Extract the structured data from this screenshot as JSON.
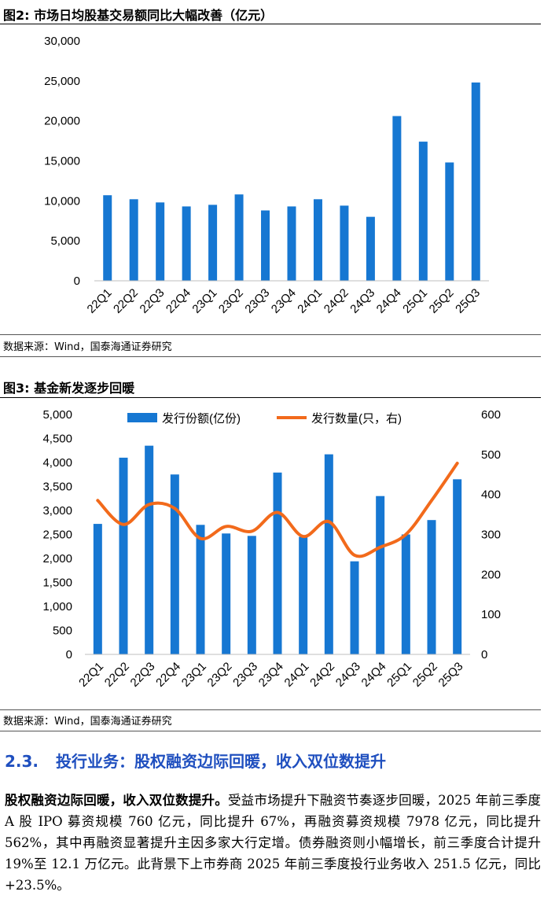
{
  "figure2": {
    "title": "图2:  市场日均股基交易额同比大幅改善（亿元）",
    "source": "数据来源：Wind，国泰海通证券研究",
    "chart_data": {
      "type": "bar",
      "categories": [
        "22Q1",
        "22Q2",
        "22Q3",
        "22Q4",
        "23Q1",
        "23Q2",
        "23Q3",
        "23Q4",
        "24Q1",
        "24Q2",
        "24Q3",
        "24Q4",
        "25Q1",
        "25Q2",
        "25Q3"
      ],
      "values": [
        10700,
        10200,
        9800,
        9300,
        9500,
        10800,
        8800,
        9300,
        10200,
        9400,
        8000,
        20600,
        17400,
        14800,
        24800
      ],
      "ylim": [
        0,
        30000
      ],
      "yticks": [
        "0",
        "5,000",
        "10,000",
        "15,000",
        "20,000",
        "25,000",
        "30,000"
      ],
      "color": "#1677d2",
      "grid": false
    }
  },
  "figure3": {
    "title": "图3:  基金新发逐步回暖",
    "source": "数据来源：Wind，国泰海通证券研究",
    "chart_data": {
      "type": "bar+line",
      "categories": [
        "22Q1",
        "22Q2",
        "22Q3",
        "22Q4",
        "23Q1",
        "23Q2",
        "23Q3",
        "23Q4",
        "24Q1",
        "24Q2",
        "24Q3",
        "24Q4",
        "25Q1",
        "25Q2",
        "25Q3"
      ],
      "series": [
        {
          "name": "发行份额(亿份)",
          "type": "bar",
          "axis": "left",
          "color": "#1677d2",
          "values": [
            2720,
            4100,
            4350,
            3750,
            2700,
            2520,
            2470,
            3790,
            2450,
            4170,
            1940,
            3300,
            2500,
            2800,
            3650
          ]
        },
        {
          "name": "发行数量(只，右)",
          "type": "line",
          "axis": "right",
          "color": "#f26a1b",
          "values": [
            385,
            325,
            375,
            365,
            290,
            320,
            308,
            355,
            295,
            332,
            248,
            268,
            300,
            385,
            478
          ]
        }
      ],
      "ylim_left": [
        0,
        5000
      ],
      "ylim_right": [
        0,
        600
      ],
      "yticks_left": [
        "0",
        "500",
        "1,000",
        "1,500",
        "2,000",
        "2,500",
        "3,000",
        "3,500",
        "4,000",
        "4,500",
        "5,000"
      ],
      "yticks_right": [
        "0",
        "100",
        "200",
        "300",
        "400",
        "500",
        "600"
      ],
      "legend_position": "top",
      "grid": false
    }
  },
  "section": {
    "number": "2.3.",
    "title": "投行业务：股权融资边际回暖，收入双位数提升"
  },
  "paragraph": {
    "lead": "股权融资边际回暖，收入双位数提升。",
    "body": "受益市场提升下融资节奏逐步回暖，2025 年前三季度 A 股 IPO 募资规模 760 亿元，同比提升 67%，再融资募资规模 7978 亿元，同比提升 562%，其中再融资显著提升主因多家大行定增。债券融资则小幅增长，前三季度合计提升 19%至 12.1 万亿元。此背景下上市券商 2025 年前三季度投行业务收入 251.5 亿元，同比+23.5%。"
  }
}
